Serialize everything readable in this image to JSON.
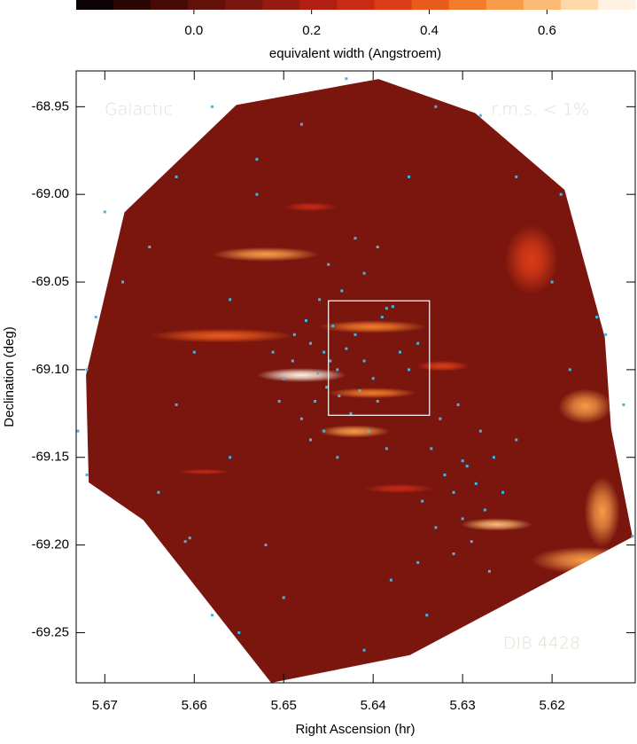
{
  "chart_data": {
    "type": "heatmap",
    "xlabel": "Right Ascension (hr)",
    "ylabel": "Declination (deg)",
    "xlim": [
      5.6732,
      5.6107
    ],
    "ylim": [
      -69.2786,
      -68.9296
    ],
    "xticks": [
      5.67,
      5.66,
      5.65,
      5.64,
      5.63,
      5.62
    ],
    "yticks": [
      -68.95,
      {
        "value": -69.0,
        "label": "-69.00"
      },
      -69.05,
      {
        "value": -69.1,
        "label": "-69.10"
      },
      -69.15,
      {
        "value": -69.2,
        "label": "-69.20"
      },
      -69.25
    ],
    "colorbar": {
      "label": "equivalent width (Angstroem)",
      "lim": [
        -0.2,
        0.75
      ],
      "ticks": [
        {
          "value": 0,
          "label": "0.0"
        },
        0.2,
        0.4,
        0.6
      ],
      "colors": [
        "#0b0303",
        "#2a0705",
        "#470b07",
        "#62100a",
        "#7a160e",
        "#951a10",
        "#b01f12",
        "#c82a14",
        "#dc3d17",
        "#e95a1d",
        "#f27c2a",
        "#f79c48",
        "#fbbb74",
        "#fdd8a8",
        "#fff2e2"
      ]
    },
    "annotations": [
      "Galactic",
      "r.m.s. < 1%",
      "DIB 4428"
    ],
    "hull": {
      "value": 0.1,
      "ra": [
        5.6394,
        5.6286,
        5.6186,
        5.6141,
        5.6134,
        5.611,
        5.6359,
        5.6514,
        5.6657,
        5.6718,
        5.6721,
        5.6678,
        5.6553
      ],
      "dec": [
        -68.9342,
        -68.9536,
        -68.9974,
        -69.0816,
        -69.1337,
        -69.1954,
        -69.2628,
        -69.2786,
        -69.1857,
        -69.1643,
        -69.1031,
        -69.0102,
        -68.949
      ]
    },
    "features": [
      {
        "ra": 5.648,
        "dec": -69.1031,
        "d_ra": 0.005,
        "d_dec": 0.004,
        "value": 0.7
      },
      {
        "ra": 5.652,
        "dec": -69.0342,
        "d_ra": 0.006,
        "d_dec": 0.004,
        "value": 0.5
      },
      {
        "ra": 5.6569,
        "dec": -69.0806,
        "d_ra": 0.008,
        "d_dec": 0.004,
        "value": 0.4
      },
      {
        "ra": 5.6401,
        "dec": -69.0755,
        "d_ra": 0.006,
        "d_dec": 0.0036,
        "value": 0.45
      },
      {
        "ra": 5.6401,
        "dec": -69.1133,
        "d_ra": 0.005,
        "d_dec": 0.003,
        "value": 0.45
      },
      {
        "ra": 5.6421,
        "dec": -69.1352,
        "d_ra": 0.004,
        "d_dec": 0.0036,
        "value": 0.55
      },
      {
        "ra": 5.6262,
        "dec": -69.1883,
        "d_ra": 0.004,
        "d_dec": 0.0036,
        "value": 0.6
      },
      {
        "ra": 5.6163,
        "dec": -69.1209,
        "d_ra": 0.003,
        "d_dec": 0.01,
        "value": 0.55
      },
      {
        "ra": 5.6322,
        "dec": -69.0979,
        "d_ra": 0.003,
        "d_dec": 0.003,
        "value": 0.35
      },
      {
        "ra": 5.6589,
        "dec": -69.1582,
        "d_ra": 0.003,
        "d_dec": 0.0015,
        "value": 0.3
      },
      {
        "ra": 5.6163,
        "dec": -69.2087,
        "d_ra": 0.006,
        "d_dec": 0.0077,
        "value": 0.5
      },
      {
        "ra": 5.6223,
        "dec": -69.0372,
        "d_ra": 0.003,
        "d_dec": 0.02,
        "value": 0.35
      },
      {
        "ra": 5.6144,
        "dec": -69.1811,
        "d_ra": 0.002,
        "d_dec": 0.02,
        "value": 0.5
      },
      {
        "ra": 5.647,
        "dec": -69.0071,
        "d_ra": 0.003,
        "d_dec": 0.0026,
        "value": 0.3
      },
      {
        "ra": 5.6371,
        "dec": -69.1678,
        "d_ra": 0.004,
        "d_dec": 0.0026,
        "value": 0.3
      }
    ],
    "box": {
      "ra": [
        5.645,
        5.6337
      ],
      "dec": [
        -69.0607,
        -69.126
      ]
    },
    "stars": {
      "color": "#49b4e4",
      "ra": [
        5.6455,
        5.6448,
        5.644,
        5.6462,
        5.643,
        5.642,
        5.647,
        5.641,
        5.64,
        5.6452,
        5.6438,
        5.6465,
        5.639,
        5.6385,
        5.6378,
        5.6445,
        5.6475,
        5.649,
        5.65,
        5.6425,
        5.6415,
        5.6395,
        5.648,
        5.6455,
        5.647,
        5.6435,
        5.641,
        5.645,
        5.6395,
        5.642,
        5.646,
        5.6488,
        5.637,
        5.636,
        5.635,
        5.6405,
        5.6385,
        5.644,
        5.6505,
        5.6512,
        5.63,
        5.6295,
        5.6285,
        5.631,
        5.6275,
        5.63,
        5.632,
        5.6335,
        5.6265,
        5.629,
        5.631,
        5.6255,
        5.633,
        5.6345,
        5.628,
        5.6325,
        5.627,
        5.635,
        5.624,
        5.6305,
        5.643,
        5.658,
        5.653,
        5.662,
        5.67,
        5.665,
        5.672,
        5.671,
        5.673,
        5.672,
        5.661,
        5.6605,
        5.658,
        5.655,
        5.65,
        5.641,
        5.638,
        5.634,
        5.662,
        5.66,
        5.656,
        5.653,
        5.648,
        5.636,
        5.633,
        5.628,
        5.624,
        5.619,
        5.615,
        5.614,
        5.612,
        5.611,
        5.618,
        5.62,
        5.656,
        5.652,
        5.664,
        5.668
      ],
      "dec": [
        -69.09,
        -69.095,
        -69.1,
        -69.102,
        -69.088,
        -69.08,
        -69.085,
        -69.095,
        -69.105,
        -69.11,
        -69.115,
        -69.118,
        -69.07,
        -69.065,
        -69.064,
        -69.075,
        -69.072,
        -69.095,
        -69.105,
        -69.125,
        -69.112,
        -69.118,
        -69.128,
        -69.135,
        -69.14,
        -69.055,
        -69.045,
        -69.04,
        -69.03,
        -69.025,
        -69.06,
        -69.08,
        -69.09,
        -69.1,
        -69.085,
        -69.135,
        -69.145,
        -69.15,
        -69.118,
        -69.09,
        -69.152,
        -69.155,
        -69.165,
        -69.17,
        -69.18,
        -69.185,
        -69.16,
        -69.145,
        -69.15,
        -69.198,
        -69.205,
        -69.17,
        -69.19,
        -69.175,
        -69.135,
        -69.128,
        -69.215,
        -69.21,
        -69.14,
        -69.12,
        -68.934,
        -68.95,
        -68.98,
        -68.99,
        -69.01,
        -69.03,
        -69.1,
        -69.07,
        -69.135,
        -69.16,
        -69.198,
        -69.196,
        -69.24,
        -69.25,
        -69.23,
        -69.26,
        -69.22,
        -69.24,
        -69.12,
        -69.09,
        -69.06,
        -69.0,
        -68.96,
        -68.99,
        -68.95,
        -68.955,
        -68.99,
        -69.0,
        -69.07,
        -69.08,
        -69.12,
        -69.195,
        -69.1,
        -69.05,
        -69.15,
        -69.2,
        -69.17,
        -69.05
      ]
    }
  }
}
